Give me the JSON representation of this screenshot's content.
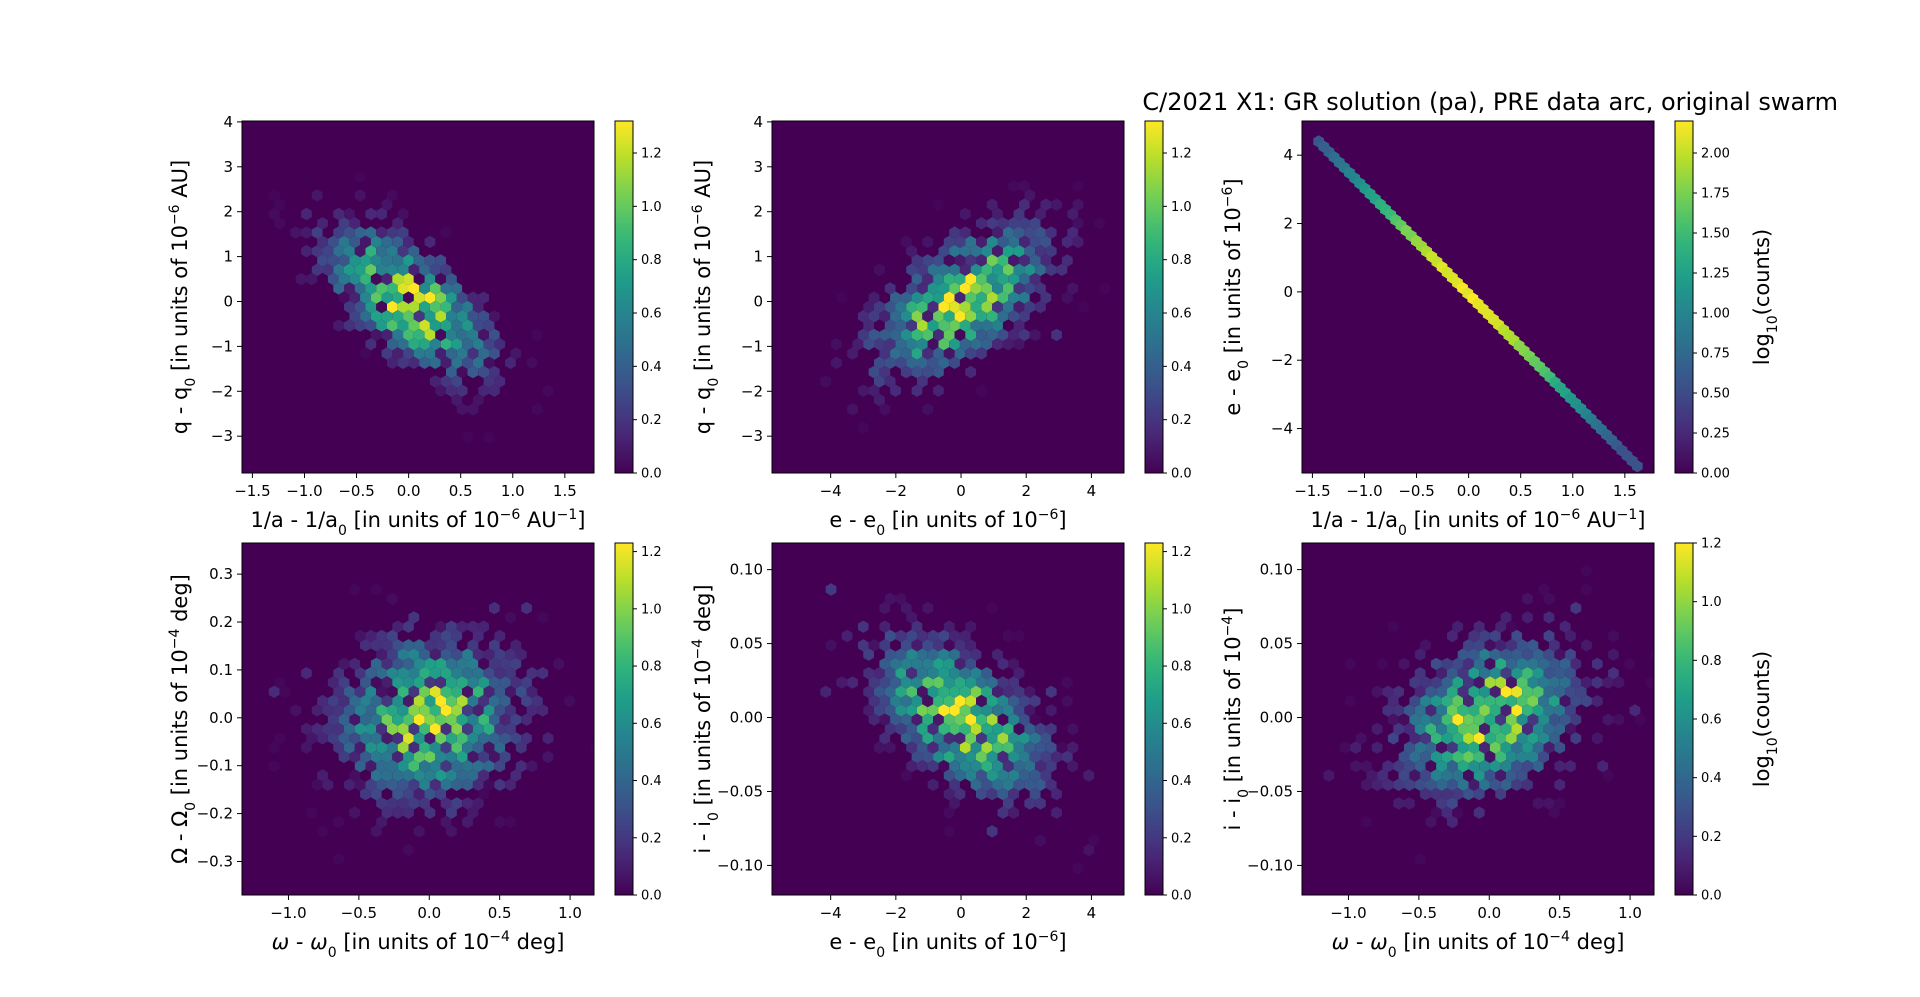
{
  "figure": {
    "title": "C/2021 X1: GR solution (pa), PRE data arc, original swarm",
    "background": "#ffffff",
    "colormap": "viridis",
    "colorbar_label": "log10(counts)"
  },
  "chart_data": [
    {
      "id": "p1",
      "type": "heatmap",
      "xlabel": "1/a - 1/a0 [in units of 10^-6 AU^-1]",
      "ylabel": "q - q0 [in units of 10^-6 AU]",
      "xlim": [
        -1.6,
        1.78
      ],
      "ylim": [
        -3.82,
        4.02
      ],
      "xticks": [
        -1.5,
        -1.0,
        -0.5,
        0.0,
        0.5,
        1.0,
        1.5
      ],
      "yticks": [
        -3,
        -2,
        -1,
        0,
        1,
        2,
        3,
        4
      ],
      "colorbar": {
        "min": 0.0,
        "max": 1.32,
        "ticks": [
          0.0,
          0.2,
          0.4,
          0.6,
          0.8,
          1.0,
          1.2
        ],
        "label": ""
      },
      "distribution": {
        "cx": 0.0,
        "cy": 0.0,
        "sx": 0.48,
        "sy": 1.0,
        "rho": -0.62
      },
      "xlabel_parts": [
        [
          "1/a - 1/a",
          ""
        ],
        [
          "0",
          "sub"
        ],
        [
          " [in units of 10",
          ""
        ],
        [
          "−6",
          "sup"
        ],
        [
          " AU",
          ""
        ],
        [
          "−1",
          "sup"
        ],
        [
          "]",
          ""
        ]
      ],
      "ylabel_parts": [
        [
          "q - q",
          ""
        ],
        [
          "0",
          "sub"
        ],
        [
          " [in units of 10",
          ""
        ],
        [
          "−6",
          "sup"
        ],
        [
          " AU]",
          ""
        ]
      ]
    },
    {
      "id": "p2",
      "type": "heatmap",
      "xlabel": "e - e0 [in units of 10^-6]",
      "ylabel": "q - q0 [in units of 10^-6 AU]",
      "xlim": [
        -5.8,
        5.0
      ],
      "ylim": [
        -3.82,
        4.02
      ],
      "xticks": [
        -4,
        -2,
        0,
        2,
        4
      ],
      "yticks": [
        -3,
        -2,
        -1,
        0,
        1,
        2,
        3,
        4
      ],
      "colorbar": {
        "min": 0.0,
        "max": 1.32,
        "ticks": [
          0.0,
          0.2,
          0.4,
          0.6,
          0.8,
          1.0,
          1.2
        ],
        "label": ""
      },
      "distribution": {
        "cx": 0.0,
        "cy": 0.0,
        "sx": 1.6,
        "sy": 1.0,
        "rho": 0.6
      },
      "xlabel_parts": [
        [
          "e - e",
          ""
        ],
        [
          "0",
          "sub"
        ],
        [
          " [in units of 10",
          ""
        ],
        [
          "−6",
          "sup"
        ],
        [
          "]",
          ""
        ]
      ],
      "ylabel_parts": [
        [
          "q - q",
          ""
        ],
        [
          "0",
          "sub"
        ],
        [
          " [in units of 10",
          ""
        ],
        [
          "−6",
          "sup"
        ],
        [
          " AU]",
          ""
        ]
      ]
    },
    {
      "id": "p3",
      "type": "heatmap",
      "xlabel": "1/a - 1/a0 [in units of 10^-6 AU^-1]",
      "ylabel": "e - e0 [in units of 10^-6]",
      "xlim": [
        -1.6,
        1.78
      ],
      "ylim": [
        -5.3,
        5.0
      ],
      "xticks": [
        -1.5,
        -1.0,
        -0.5,
        0.0,
        0.5,
        1.0,
        1.5
      ],
      "yticks": [
        -4,
        -2,
        0,
        2,
        4
      ],
      "colorbar": {
        "min": 0.0,
        "max": 2.2,
        "ticks": [
          0.0,
          0.25,
          0.5,
          0.75,
          1.0,
          1.25,
          1.5,
          1.75,
          2.0
        ],
        "label": "log10(counts)"
      },
      "line": {
        "x0": -1.44,
        "y0": 4.4,
        "x1": 1.62,
        "y1": -5.1,
        "peak_at_x": 0.0
      },
      "xlabel_parts": [
        [
          "1/a - 1/a",
          ""
        ],
        [
          "0",
          "sub"
        ],
        [
          " [in units of 10",
          ""
        ],
        [
          "−6",
          "sup"
        ],
        [
          " AU",
          ""
        ],
        [
          "−1",
          "sup"
        ],
        [
          "]",
          ""
        ]
      ],
      "ylabel_parts": [
        [
          "e - e",
          ""
        ],
        [
          "0",
          "sub"
        ],
        [
          " [in units of 10",
          ""
        ],
        [
          "−6",
          "sup"
        ],
        [
          "]",
          ""
        ]
      ]
    },
    {
      "id": "p4",
      "type": "heatmap",
      "xlabel": "ω - ω0 [in units of 10^-4 deg]",
      "ylabel": "Ω - Ω0 [in units of 10^-4 deg]",
      "xlim": [
        -1.33,
        1.17
      ],
      "ylim": [
        -0.37,
        0.365
      ],
      "xticks": [
        -1.0,
        -0.5,
        0.0,
        0.5,
        1.0
      ],
      "yticks": [
        -0.3,
        -0.2,
        -0.1,
        0.0,
        0.1,
        0.2,
        0.3
      ],
      "colorbar": {
        "min": 0.0,
        "max": 1.23,
        "ticks": [
          0.0,
          0.2,
          0.4,
          0.6,
          0.8,
          1.0,
          1.2
        ],
        "label": ""
      },
      "distribution": {
        "cx": 0.0,
        "cy": 0.0,
        "sx": 0.38,
        "sy": 0.1,
        "rho": 0.08
      },
      "xlabel_parts": [
        [
          "ω",
          ""
        ],
        [
          " - ",
          ""
        ],
        [
          "ω",
          ""
        ],
        [
          "0",
          "sub"
        ],
        [
          " [in units of 10",
          ""
        ],
        [
          "−4",
          "sup"
        ],
        [
          " deg]",
          ""
        ]
      ],
      "ylabel_parts": [
        [
          "Ω - Ω",
          ""
        ],
        [
          "0",
          "sub"
        ],
        [
          " [in units of 10",
          ""
        ],
        [
          "−4",
          "sup"
        ],
        [
          " deg]",
          ""
        ]
      ]
    },
    {
      "id": "p5",
      "type": "heatmap",
      "xlabel": "e - e0 [in units of 10^-6]",
      "ylabel": "i - i0 [in units of 10^-4 deg]",
      "xlim": [
        -5.8,
        5.0
      ],
      "ylim": [
        -0.12,
        0.118
      ],
      "xticks": [
        -4,
        -2,
        0,
        2,
        4
      ],
      "yticks": [
        -0.1,
        -0.05,
        0.0,
        0.05,
        0.1
      ],
      "colorbar": {
        "min": 0.0,
        "max": 1.23,
        "ticks": [
          0.0,
          0.2,
          0.4,
          0.6,
          0.8,
          1.0,
          1.2
        ],
        "label": ""
      },
      "distribution": {
        "cx": 0.0,
        "cy": 0.0,
        "sx": 1.6,
        "sy": 0.032,
        "rho": -0.55
      },
      "xlabel_parts": [
        [
          "e - e",
          ""
        ],
        [
          "0",
          "sub"
        ],
        [
          " [in units of 10",
          ""
        ],
        [
          "−6",
          "sup"
        ],
        [
          "]",
          ""
        ]
      ],
      "ylabel_parts": [
        [
          "i - i",
          ""
        ],
        [
          "0",
          "sub"
        ],
        [
          " [in units of 10",
          ""
        ],
        [
          "−4",
          "sup"
        ],
        [
          " deg]",
          ""
        ]
      ]
    },
    {
      "id": "p6",
      "type": "heatmap",
      "xlabel": "ω - ω0 [in units of 10^-4 deg]",
      "ylabel": "i - i0 [in units of 10^-4]",
      "xlim": [
        -1.33,
        1.17
      ],
      "ylim": [
        -0.12,
        0.118
      ],
      "xticks": [
        -1.0,
        -0.5,
        0.0,
        0.5,
        1.0
      ],
      "yticks": [
        -0.1,
        -0.05,
        0.0,
        0.05,
        0.1
      ],
      "colorbar": {
        "min": 0.0,
        "max": 1.2,
        "ticks": [
          0.0,
          0.2,
          0.4,
          0.6,
          0.8,
          1.0,
          1.2
        ],
        "label": "log10(counts)"
      },
      "distribution": {
        "cx": 0.0,
        "cy": 0.0,
        "sx": 0.38,
        "sy": 0.032,
        "rho": 0.3
      },
      "xlabel_parts": [
        [
          "ω",
          ""
        ],
        [
          " - ",
          ""
        ],
        [
          "ω",
          ""
        ],
        [
          "0",
          "sub"
        ],
        [
          " [in units of 10",
          ""
        ],
        [
          "−4",
          "sup"
        ],
        [
          " deg]",
          ""
        ]
      ],
      "ylabel_parts": [
        [
          "i - i",
          ""
        ],
        [
          "0",
          "sub"
        ],
        [
          " [in units of 10",
          ""
        ],
        [
          "−4",
          "sup"
        ],
        [
          "]",
          ""
        ]
      ]
    }
  ]
}
